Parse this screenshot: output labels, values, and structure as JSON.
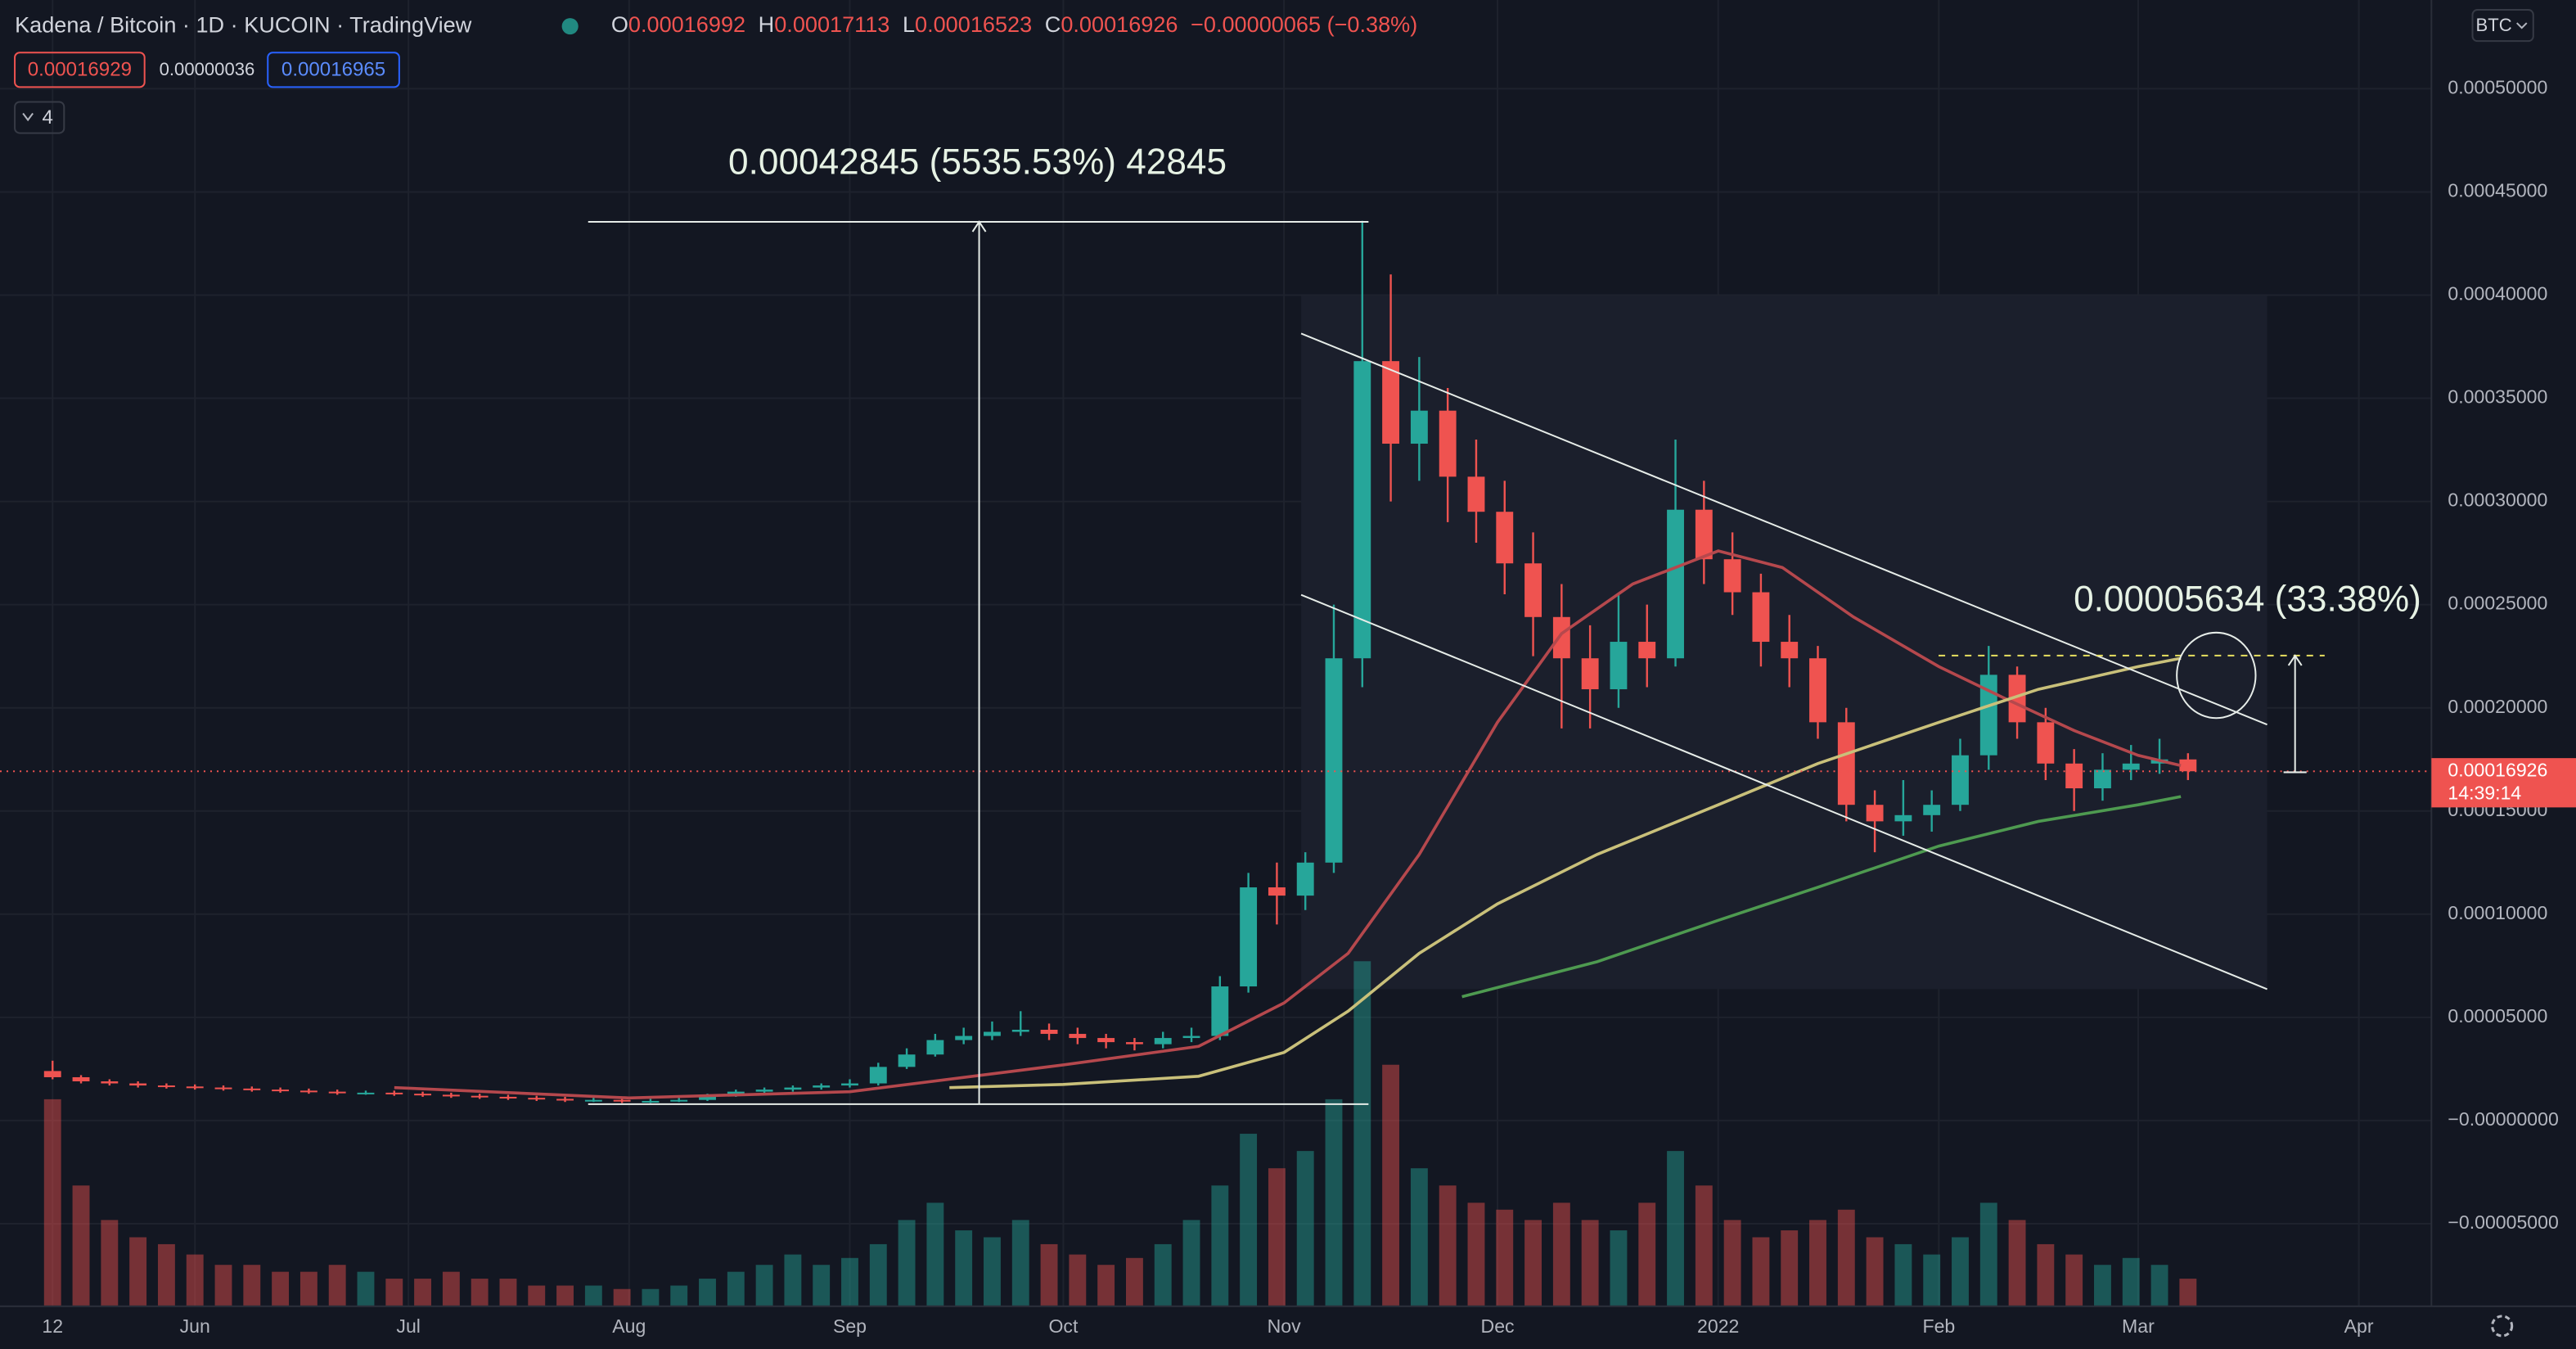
{
  "header": {
    "title": "Kadena / Bitcoin · 1D · KUCOIN · TradingView",
    "ohlc": [
      {
        "label": "O",
        "value": "0.00016992"
      },
      {
        "label": "H",
        "value": "0.00017113"
      },
      {
        "label": "L",
        "value": "0.00016523"
      },
      {
        "label": "C",
        "value": "0.00016926"
      }
    ],
    "change": "−0.00000065 (−0.38%)",
    "bid": "0.00016929",
    "spread": "0.00000036",
    "ask": "0.00016965",
    "indicators_count": "4",
    "currency": "BTC"
  },
  "chart_data": {
    "type": "candlestick",
    "up_color": "#26a69a",
    "down_color": "#ef5350",
    "grid": true,
    "x": [
      0,
      4,
      8,
      12,
      16,
      20,
      24,
      28,
      32,
      36,
      40,
      44,
      48,
      52,
      56,
      60,
      64,
      68,
      72,
      76,
      80,
      84,
      88,
      92,
      96,
      100,
      104,
      108,
      112,
      116,
      120,
      124,
      128,
      132,
      136,
      140,
      144,
      148,
      152,
      156,
      160,
      164,
      168,
      172,
      176,
      180,
      184,
      188,
      192,
      196,
      200,
      204,
      208,
      212,
      216,
      220,
      224,
      228,
      232,
      236,
      240,
      244,
      248,
      252,
      256,
      260,
      264,
      268,
      272,
      276,
      280,
      284,
      288,
      292,
      296,
      300
    ],
    "open": [
      2.4e-05,
      2.1e-05,
      1.9e-05,
      1.8e-05,
      1.7e-05,
      1.65e-05,
      1.6e-05,
      1.55e-05,
      1.5e-05,
      1.45e-05,
      1.4e-05,
      1.35e-05,
      1.35e-05,
      1.3e-05,
      1.25e-05,
      1.2e-05,
      1.15e-05,
      1.1e-05,
      1.05e-05,
      1e-05,
      1e-05,
      9.5e-06,
      9.5e-06,
      1e-05,
      1.2e-05,
      1.4e-05,
      1.5e-05,
      1.6e-05,
      1.7e-05,
      1.8e-05,
      2.6e-05,
      3.2e-05,
      3.9e-05,
      4.1e-05,
      4.3e-05,
      4.4e-05,
      4.2e-05,
      4e-05,
      3.8e-05,
      3.7e-05,
      4e-05,
      4.1e-05,
      6.5e-05,
      0.000113,
      0.000109,
      0.000125,
      0.000224,
      0.000368,
      0.000328,
      0.000344,
      0.000312,
      0.000295,
      0.00027,
      0.000244,
      0.000224,
      0.000209,
      0.000232,
      0.000224,
      0.000296,
      0.000272,
      0.000256,
      0.000232,
      0.000224,
      0.000193,
      0.000153,
      0.000145,
      0.000148,
      0.000153,
      0.000177,
      0.000216,
      0.000193,
      0.000173,
      0.000161,
      0.00017,
      0.000173,
      0.000175
    ],
    "high": [
      2.9e-05,
      2.2e-05,
      2e-05,
      1.9e-05,
      1.8e-05,
      1.75e-05,
      1.7e-05,
      1.65e-05,
      1.6e-05,
      1.55e-05,
      1.5e-05,
      1.45e-05,
      1.45e-05,
      1.4e-05,
      1.35e-05,
      1.3e-05,
      1.25e-05,
      1.2e-05,
      1.15e-05,
      1.1e-05,
      1.1e-05,
      1.05e-05,
      1.1e-05,
      1.3e-05,
      1.5e-05,
      1.6e-05,
      1.7e-05,
      1.8e-05,
      2e-05,
      2.8e-05,
      3.5e-05,
      4.2e-05,
      4.5e-05,
      4.8e-05,
      5.3e-05,
      4.7e-05,
      4.5e-05,
      4.2e-05,
      4e-05,
      4.3e-05,
      4.5e-05,
      7e-05,
      0.00012,
      0.000125,
      0.00013,
      0.00025,
      0.000436,
      0.00041,
      0.00037,
      0.000355,
      0.00033,
      0.00031,
      0.000285,
      0.00026,
      0.00024,
      0.000255,
      0.00025,
      0.00033,
      0.00031,
      0.000285,
      0.000265,
      0.000245,
      0.00023,
      0.0002,
      0.00016,
      0.000165,
      0.00016,
      0.000185,
      0.00023,
      0.00022,
      0.0002,
      0.00018,
      0.000178,
      0.000182,
      0.000185,
      0.000178
    ],
    "low": [
      2e-05,
      1.8e-05,
      1.7e-05,
      1.6e-05,
      1.55e-05,
      1.5e-05,
      1.45e-05,
      1.4e-05,
      1.35e-05,
      1.3e-05,
      1.25e-05,
      1.25e-05,
      1.2e-05,
      1.15e-05,
      1.1e-05,
      1.05e-05,
      1e-05,
      9.5e-06,
      9e-06,
      9e-06,
      8.5e-06,
      8.5e-06,
      9e-06,
      9.5e-06,
      1.15e-05,
      1.3e-05,
      1.4e-05,
      1.5e-05,
      1.6e-05,
      1.7e-05,
      2.5e-05,
      3.1e-05,
      3.7e-05,
      3.9e-05,
      4.1e-05,
      3.9e-05,
      3.7e-05,
      3.5e-05,
      3.4e-05,
      3.5e-05,
      3.8e-05,
      3.9e-05,
      6.2e-05,
      9.5e-05,
      0.000102,
      0.00012,
      0.00021,
      0.0003,
      0.00031,
      0.00029,
      0.00028,
      0.000255,
      0.000225,
      0.00019,
      0.00019,
      0.0002,
      0.00021,
      0.00022,
      0.00026,
      0.000245,
      0.00022,
      0.00021,
      0.000185,
      0.000145,
      0.00013,
      0.000138,
      0.00014,
      0.00015,
      0.00017,
      0.000185,
      0.000165,
      0.00015,
      0.000155,
      0.000165,
      0.000168,
      0.000165
    ],
    "close": [
      2.1e-05,
      1.9e-05,
      1.8e-05,
      1.7e-05,
      1.65e-05,
      1.6e-05,
      1.55e-05,
      1.5e-05,
      1.45e-05,
      1.4e-05,
      1.35e-05,
      1.35e-05,
      1.3e-05,
      1.25e-05,
      1.2e-05,
      1.15e-05,
      1.1e-05,
      1.05e-05,
      1e-05,
      1e-05,
      9.5e-06,
      9.5e-06,
      1e-05,
      1.2e-05,
      1.4e-05,
      1.5e-05,
      1.6e-05,
      1.7e-05,
      1.8e-05,
      2.6e-05,
      3.2e-05,
      3.9e-05,
      4.1e-05,
      4.3e-05,
      4.4e-05,
      4.2e-05,
      4e-05,
      3.8e-05,
      3.7e-05,
      4e-05,
      4.1e-05,
      6.5e-05,
      0.000113,
      0.000109,
      0.000125,
      0.000224,
      0.000368,
      0.000328,
      0.000344,
      0.000312,
      0.000295,
      0.00027,
      0.000244,
      0.000224,
      0.000209,
      0.000232,
      0.000224,
      0.000296,
      0.000272,
      0.000256,
      0.000232,
      0.000224,
      0.000193,
      0.000153,
      0.000145,
      0.000148,
      0.000153,
      0.000177,
      0.000216,
      0.000193,
      0.000173,
      0.000161,
      0.00017,
      0.000173,
      0.000175,
      0.00016926
    ],
    "volume": [
      60,
      35,
      25,
      20,
      18,
      15,
      12,
      12,
      10,
      10,
      12,
      10,
      8,
      8,
      10,
      8,
      8,
      6,
      6,
      6,
      5,
      5,
      6,
      8,
      10,
      12,
      15,
      12,
      14,
      18,
      25,
      30,
      22,
      20,
      25,
      18,
      15,
      12,
      14,
      18,
      25,
      35,
      50,
      40,
      45,
      60,
      100,
      70,
      40,
      35,
      30,
      28,
      25,
      30,
      25,
      22,
      30,
      45,
      35,
      25,
      20,
      22,
      25,
      28,
      20,
      18,
      15,
      20,
      30,
      25,
      18,
      15,
      12,
      14,
      12,
      8
    ],
    "volume_lim": [
      0,
      100
    ],
    "moving_averages": [
      {
        "color": "#b5484d",
        "x": [
          48,
          81,
          112,
          142,
          161,
          173,
          182,
          192,
          203,
          212,
          222,
          234,
          243,
          253,
          265,
          274,
          284,
          293,
          299
        ],
        "values": [
          1.6e-05,
          1.1e-05,
          1.4e-05,
          2.7e-05,
          3.6e-05,
          5.7e-05,
          8.1e-05,
          0.000129,
          0.000193,
          0.000236,
          0.00026,
          0.000276,
          0.000268,
          0.000244,
          0.00022,
          0.000205,
          0.000189,
          0.000177,
          0.000172
        ]
      },
      {
        "color": "#c9c07a",
        "x": [
          126,
          142,
          161,
          173,
          182,
          192,
          203,
          217,
          234,
          248,
          265,
          279,
          293,
          299
        ],
        "values": [
          1.6e-05,
          1.75e-05,
          2.15e-05,
          3.3e-05,
          5.3e-05,
          8.1e-05,
          0.000105,
          0.000129,
          0.000153,
          0.000173,
          0.000193,
          0.000209,
          0.00022,
          0.000224
        ]
      },
      {
        "color": "#4e9a50",
        "x": [
          198,
          217,
          234,
          248,
          265,
          279,
          293,
          299
        ],
        "values": [
          6e-05,
          7.7e-05,
          9.7e-05,
          0.000113,
          0.000133,
          0.000145,
          0.000153,
          0.000157
        ]
      }
    ],
    "xlim": [
      -7.385,
      334.2
    ],
    "xticks": [
      {
        "value": 0,
        "label": "12"
      },
      {
        "value": 20,
        "label": "Jun"
      },
      {
        "value": 50,
        "label": "Jul"
      },
      {
        "value": 81,
        "label": "Aug"
      },
      {
        "value": 112,
        "label": "Sep"
      },
      {
        "value": 142,
        "label": "Oct"
      },
      {
        "value": 173,
        "label": "Nov"
      },
      {
        "value": 203,
        "label": "Dec"
      },
      {
        "value": 234,
        "label": "2022"
      },
      {
        "value": 265,
        "label": "Feb"
      },
      {
        "value": 293,
        "label": "Mar"
      },
      {
        "value": 324,
        "label": "Apr"
      }
    ],
    "ylim": [
      -9e-05,
      0.000543
    ],
    "yticks": [
      {
        "value": 0.0005,
        "label": "0.00050000"
      },
      {
        "value": 0.00045,
        "label": "0.00045000"
      },
      {
        "value": 0.0004,
        "label": "0.00040000"
      },
      {
        "value": 0.00035,
        "label": "0.00035000"
      },
      {
        "value": 0.0003,
        "label": "0.00030000"
      },
      {
        "value": 0.00025,
        "label": "0.00025000"
      },
      {
        "value": 0.0002,
        "label": "0.00020000"
      },
      {
        "value": 0.00015,
        "label": "0.00015000"
      },
      {
        "value": 0.0001,
        "label": "0.00010000"
      },
      {
        "value": 5e-05,
        "label": "0.00005000"
      },
      {
        "value": 0,
        "label": "−0.00000000"
      },
      {
        "value": -5e-05,
        "label": "−0.00005000"
      }
    ],
    "price_line": {
      "value": 0.00016926,
      "countdown": "14:39:14"
    },
    "annotations": [
      "0.00042845 (5535.53%) 42845",
      "0.00005634 (33.38%)"
    ]
  }
}
